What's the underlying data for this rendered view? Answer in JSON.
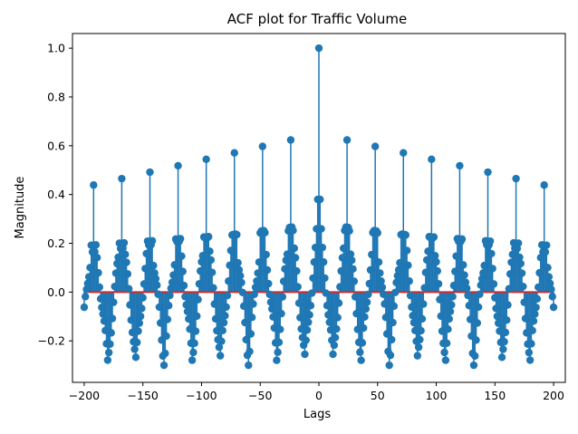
{
  "chart_data": {
    "type": "stem",
    "title": "ACF plot for Traffic Volume",
    "xlabel": "Lags",
    "ylabel": "Magnitude",
    "xlim": [
      -210,
      210
    ],
    "ylim": [
      -0.37,
      1.06
    ],
    "xticks": [
      -200,
      -150,
      -100,
      -50,
      0,
      50,
      100,
      150,
      200
    ],
    "xtick_labels": [
      "−200",
      "−150",
      "−100",
      "−50",
      "0",
      "50",
      "100",
      "150",
      "200"
    ],
    "yticks": [
      -0.2,
      0.0,
      0.2,
      0.4,
      0.6,
      0.8,
      1.0
    ],
    "ytick_labels": [
      "−0.2",
      "0.0",
      "0.2",
      "0.4",
      "0.6",
      "0.8",
      "1.0"
    ],
    "baseline": 0.0,
    "lags": {
      "start": -200,
      "end": 200,
      "step": 1
    },
    "series": [
      {
        "name": "ACF",
        "color": "#1f77b4",
        "baseline_color": "#d62728",
        "lag0_value": 1.0,
        "lag_1_value": 0.38,
        "period": 24,
        "peak_start_value": 0.43,
        "peak_end_value": 0.65,
        "typical_range": [
          -0.3,
          0.28
        ]
      }
    ]
  }
}
